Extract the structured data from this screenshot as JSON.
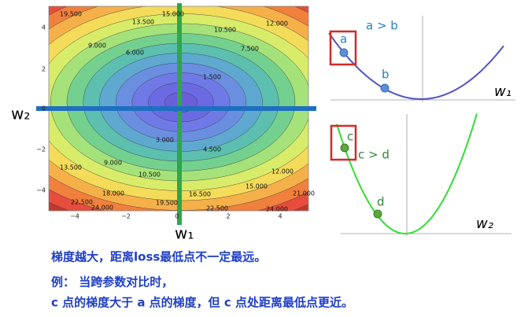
{
  "contour": {
    "y_ticks": [
      "4",
      "2",
      "0",
      "−2",
      "−4"
    ],
    "x_ticks": [
      "−4",
      "−2",
      "0",
      "2",
      "4"
    ],
    "labels": [
      "19.500",
      "15.000",
      "13.500",
      "10.500",
      "12.000",
      "9.000",
      "6.000",
      "7.500",
      "1.500",
      "3.000",
      "4.500",
      "9.000",
      "10.500",
      "12.000",
      "13.500",
      "15.000",
      "18.000",
      "19.500",
      "16.500",
      "21.000",
      "22.500",
      "24.000",
      "22.500",
      "24.000"
    ],
    "w2_label": "w₂",
    "w1_label": "w₁"
  },
  "top_plot": {
    "point_a": "a",
    "point_b": "b",
    "relation": "a > b",
    "axis_label": "w₁"
  },
  "bottom_plot": {
    "point_c": "c",
    "point_d": "d",
    "relation": "c > d",
    "axis_label": "w₂"
  },
  "notes": [
    "梯度越大，距离loss最低点不一定最远。",
    "例：  当跨参数对比时，",
    "c 点的梯度大于 a 点的梯度，但 c 点处距离最低点更近。"
  ]
}
